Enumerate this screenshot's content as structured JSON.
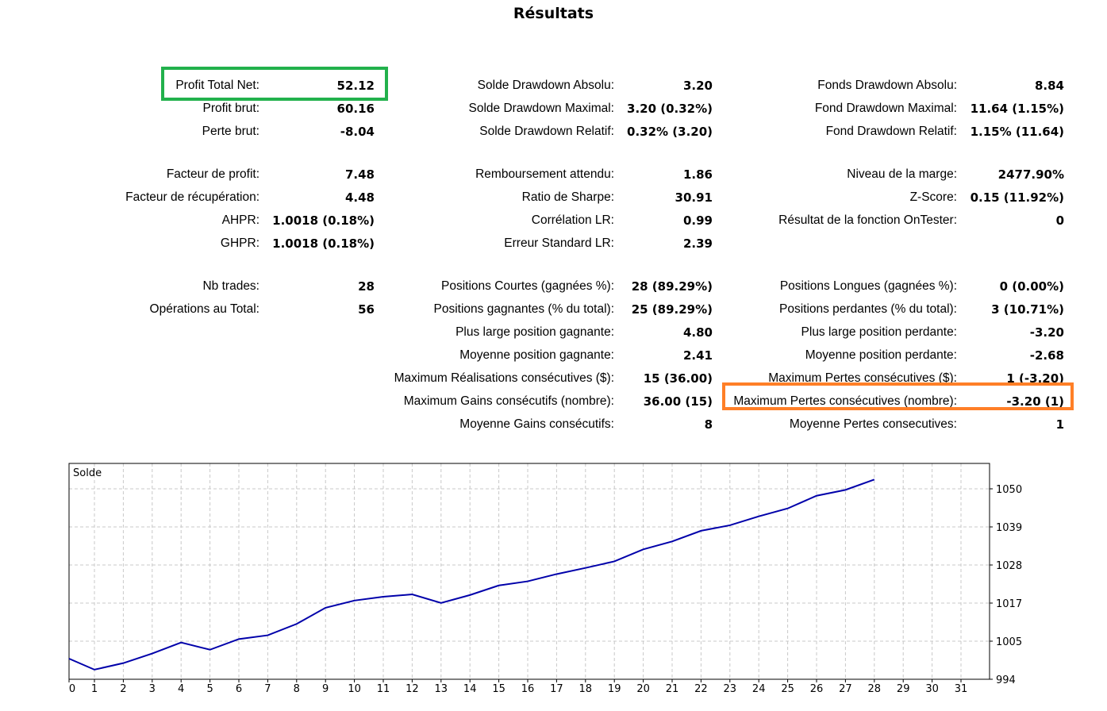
{
  "title": "Résultats",
  "highlight_colors": {
    "green": "#22b14c",
    "orange": "#ff7f27"
  },
  "columns": [
    {
      "rows": [
        {
          "slot": 0,
          "label": "Profit Total Net:",
          "value": "52.12",
          "highlight": "green"
        },
        {
          "slot": 1,
          "label": "Profit brut:",
          "value": "60.16"
        },
        {
          "slot": 2,
          "label": "Perte brut:",
          "value": "-8.04"
        },
        {
          "slot": 3,
          "label": "Facteur de profit:",
          "value": "7.48"
        },
        {
          "slot": 4,
          "label": "Facteur de récupération:",
          "value": "4.48"
        },
        {
          "slot": 5,
          "label": "AHPR:",
          "value": "1.0018 (0.18%)"
        },
        {
          "slot": 6,
          "label": "GHPR:",
          "value": "1.0018 (0.18%)"
        },
        {
          "slot": 7,
          "label": "Nb trades:",
          "value": "28"
        },
        {
          "slot": 8,
          "label": "Opérations au Total:",
          "value": "56"
        }
      ]
    },
    {
      "rows": [
        {
          "slot": 0,
          "label": "Solde Drawdown Absolu:",
          "value": "3.20"
        },
        {
          "slot": 1,
          "label": "Solde Drawdown Maximal:",
          "value": "3.20 (0.32%)"
        },
        {
          "slot": 2,
          "label": "Solde Drawdown Relatif:",
          "value": "0.32% (3.20)"
        },
        {
          "slot": 3,
          "label": "Remboursement attendu:",
          "value": "1.86"
        },
        {
          "slot": 4,
          "label": "Ratio de Sharpe:",
          "value": "30.91"
        },
        {
          "slot": 5,
          "label": "Corrélation LR:",
          "value": "0.99"
        },
        {
          "slot": 6,
          "label": "Erreur Standard LR:",
          "value": "2.39"
        },
        {
          "slot": 7,
          "label": "Positions Courtes (gagnées %):",
          "value": "28 (89.29%)"
        },
        {
          "slot": 8,
          "label": "Positions gagnantes (% du total):",
          "value": "25 (89.29%)"
        },
        {
          "slot": 9,
          "label": "Plus large position gagnante:",
          "value": "4.80"
        },
        {
          "slot": 10,
          "label": "Moyenne position gagnante:",
          "value": "2.41"
        },
        {
          "slot": 11,
          "label": "Maximum Réalisations consécutives ($):",
          "value": "15 (36.00)"
        },
        {
          "slot": 12,
          "label": "Maximum Gains consécutifs (nombre):",
          "value": "36.00 (15)"
        },
        {
          "slot": 13,
          "label": "Moyenne Gains consécutifs:",
          "value": "8"
        }
      ]
    },
    {
      "rows": [
        {
          "slot": 0,
          "label": "Fonds Drawdown Absolu:",
          "value": "8.84"
        },
        {
          "slot": 1,
          "label": "Fond Drawdown Maximal:",
          "value": "11.64 (1.15%)"
        },
        {
          "slot": 2,
          "label": "Fond Drawdown Relatif:",
          "value": "1.15% (11.64)"
        },
        {
          "slot": 3,
          "label": "Niveau de la marge:",
          "value": "2477.90%"
        },
        {
          "slot": 4,
          "label": "Z-Score:",
          "value": "0.15 (11.92%)"
        },
        {
          "slot": 5,
          "label": "Résultat de la fonction OnTester:",
          "value": "0"
        },
        {
          "slot": 7,
          "label": "Positions Longues (gagnées %):",
          "value": "0 (0.00%)"
        },
        {
          "slot": 8,
          "label": "Positions perdantes (% du total):",
          "value": "3 (10.71%)"
        },
        {
          "slot": 9,
          "label": "Plus large position perdante:",
          "value": "-3.20"
        },
        {
          "slot": 10,
          "label": "Moyenne position perdante:",
          "value": "-2.68"
        },
        {
          "slot": 11,
          "label": "Maximum Pertes consécutives ($):",
          "value": "1 (-3.20)"
        },
        {
          "slot": 12,
          "label": "Maximum Pertes consécutives (nombre):",
          "value": "-3.20 (1)",
          "highlight": "orange"
        },
        {
          "slot": 13,
          "label": "Moyenne Pertes consecutives:",
          "value": "1"
        }
      ]
    }
  ],
  "chart_data": {
    "type": "line",
    "title": "Solde",
    "series": [
      {
        "name": "Solde",
        "color": "#0000aa",
        "x": [
          0,
          1,
          2,
          3,
          4,
          5,
          6,
          7,
          8,
          9,
          10,
          11,
          12,
          13,
          14,
          15,
          16,
          17,
          18,
          19,
          20,
          21,
          22,
          23,
          24,
          25,
          26,
          27,
          28
        ],
        "values": [
          1000.0,
          996.8,
          998.7,
          1001.5,
          1004.7,
          1002.6,
          1005.7,
          1006.8,
          1010.1,
          1014.8,
          1016.9,
          1018.0,
          1018.7,
          1016.2,
          1018.5,
          1021.3,
          1022.5,
          1024.6,
          1026.4,
          1028.3,
          1031.8,
          1034.1,
          1037.2,
          1038.8,
          1041.4,
          1043.7,
          1047.4,
          1049.1,
          1052.12
        ]
      }
    ],
    "xticks": [
      0,
      1,
      2,
      3,
      4,
      5,
      6,
      7,
      8,
      9,
      10,
      11,
      12,
      13,
      14,
      15,
      16,
      17,
      18,
      19,
      20,
      21,
      22,
      23,
      24,
      25,
      26,
      27,
      28,
      29,
      30,
      31
    ],
    "yticks": [
      "994",
      "1005",
      "1017",
      "1028",
      "1039",
      "1050"
    ],
    "ylim": [
      994,
      1056.8
    ],
    "xlim": [
      0,
      32
    ],
    "grid": true,
    "yaxis_side": "right"
  }
}
